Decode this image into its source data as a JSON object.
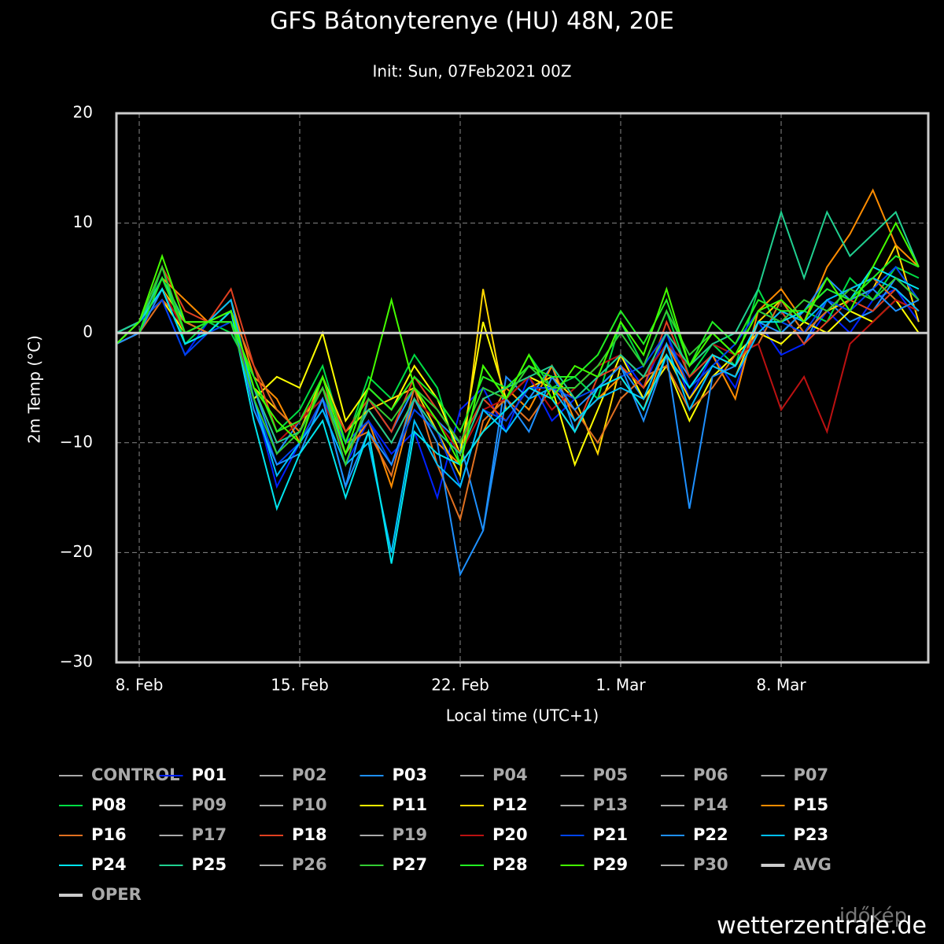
{
  "chart_data": {
    "type": "line",
    "title": "GFS Bátonyterenye (HU) 48N, 20E",
    "subtitle": "Init: Sun, 07Feb2021 00Z",
    "x_label": "Local time (UTC+1)",
    "y_label": "2m Temp (°C)",
    "footer": "wetterzentrale.de",
    "logo_text": "időkép",
    "categories": [
      null,
      "8. Feb",
      null,
      null,
      null,
      null,
      null,
      null,
      "15. Feb",
      null,
      null,
      null,
      null,
      null,
      null,
      "22. Feb",
      null,
      null,
      null,
      null,
      null,
      null,
      "1. Mar",
      null,
      null,
      null,
      null,
      null,
      null,
      "8. Mar",
      null,
      null,
      null,
      null,
      null,
      null
    ],
    "ylim": [
      -30,
      20
    ],
    "yticks": [
      {
        "value": -30,
        "label": "−30"
      },
      {
        "value": -20,
        "label": "−20"
      },
      {
        "value": -10,
        "label": "−10"
      },
      0,
      10,
      20
    ],
    "grid": true,
    "zero_line": true,
    "series": [
      {
        "name": "CONTROL",
        "visible": false
      },
      {
        "name": "P01",
        "color": "#0022ff",
        "values": [
          -1,
          1,
          3,
          -2,
          1,
          2,
          -6,
          -14,
          -10,
          -7,
          -12,
          -8,
          -11,
          -9,
          -15,
          -7,
          -5,
          -9,
          -4,
          -8,
          -6,
          -4,
          -2,
          -5,
          0,
          -6,
          -2,
          -5,
          1,
          -2,
          -1,
          2,
          0,
          3,
          4,
          1
        ]
      },
      {
        "name": "P02",
        "visible": false
      },
      {
        "name": "P03",
        "color": "#1e90ff",
        "values": [
          0,
          1,
          4,
          -1,
          0,
          2,
          -5,
          -11,
          -8,
          -6,
          -14,
          -6,
          -9,
          -5,
          -8,
          -10,
          -18,
          -4,
          -6,
          -3,
          -9,
          -5,
          -3,
          -6,
          -1,
          -4,
          -2,
          -3,
          0,
          2,
          -1,
          3,
          1,
          2,
          5,
          3
        ]
      },
      {
        "name": "P04",
        "visible": false
      },
      {
        "name": "P05",
        "visible": false
      },
      {
        "name": "P06",
        "visible": false
      },
      {
        "name": "P07",
        "visible": false
      },
      {
        "name": "P08",
        "color": "#00dd44",
        "values": [
          -1,
          0,
          6,
          -1,
          1,
          0,
          -4,
          -9,
          -7,
          -3,
          -10,
          -4,
          -6,
          -2,
          -5,
          -12,
          -3,
          -6,
          -2,
          -5,
          -4,
          -6,
          1,
          -3,
          2,
          -4,
          -1,
          -3,
          4,
          0,
          2,
          1,
          5,
          3,
          6,
          5
        ]
      },
      {
        "name": "P09",
        "visible": false
      },
      {
        "name": "P10",
        "visible": false
      },
      {
        "name": "P11",
        "color": "#ffff00",
        "values": [
          0,
          1,
          3,
          0,
          1,
          1,
          -6,
          -4,
          -5,
          0,
          -8,
          -5,
          -7,
          -3,
          -6,
          -11,
          1,
          -6,
          -4,
          -5,
          -12,
          -7,
          -2,
          -6,
          -3,
          -8,
          -4,
          -2,
          0,
          -1,
          1,
          0,
          2,
          1,
          3,
          0
        ]
      },
      {
        "name": "P12",
        "color": "#ffd700",
        "values": [
          -1,
          1,
          4,
          1,
          0,
          2,
          -5,
          -7,
          -9,
          -4,
          -9,
          -7,
          -6,
          -5,
          -9,
          -13,
          4,
          -7,
          -5,
          -4,
          -6,
          -11,
          -3,
          -5,
          -2,
          -6,
          -3,
          -4,
          1,
          3,
          0,
          2,
          3,
          4,
          8,
          1
        ]
      },
      {
        "name": "P13",
        "visible": false
      },
      {
        "name": "P14",
        "visible": false
      },
      {
        "name": "P15",
        "color": "#ff8c00",
        "values": [
          0,
          1,
          5,
          3,
          1,
          3,
          -4,
          -6,
          -10,
          -6,
          -11,
          -8,
          -14,
          -6,
          -10,
          -12,
          -9,
          -5,
          -7,
          -3,
          -8,
          -6,
          -4,
          -7,
          -1,
          -5,
          -2,
          -6,
          2,
          4,
          1,
          6,
          9,
          13,
          8,
          6
        ]
      },
      {
        "name": "P16",
        "color": "#e07020",
        "values": [
          -1,
          0,
          3,
          1,
          0,
          2,
          -3,
          -7,
          -9,
          -5,
          -10,
          -9,
          -13,
          -5,
          -12,
          -17,
          -8,
          -6,
          -8,
          -5,
          -7,
          -10,
          -6,
          -4,
          -3,
          -7,
          -5,
          -2,
          -1,
          3,
          0,
          2,
          4,
          5,
          3,
          2
        ]
      },
      {
        "name": "P17",
        "visible": false
      },
      {
        "name": "P18",
        "color": "#e04020",
        "values": [
          0,
          1,
          6,
          2,
          1,
          4,
          -3,
          -9,
          -8,
          -5,
          -9,
          -6,
          -9,
          -4,
          -7,
          -10,
          -6,
          -8,
          -5,
          -6,
          -9,
          -4,
          -3,
          -5,
          1,
          -4,
          -2,
          -3,
          0,
          2,
          -1,
          1,
          3,
          2,
          4,
          2
        ]
      },
      {
        "name": "P19",
        "visible": false
      },
      {
        "name": "P20",
        "color": "#bb1111",
        "values": [
          -1,
          0,
          4,
          0,
          1,
          1,
          -5,
          -10,
          -8,
          -6,
          -11,
          -7,
          -10,
          -6,
          -8,
          -11,
          -7,
          -6,
          -4,
          -7,
          -5,
          -3,
          -2,
          -4,
          -1,
          -3,
          -1,
          -2,
          -1,
          -7,
          -4,
          -9,
          -1,
          1,
          3,
          2
        ]
      },
      {
        "name": "P21",
        "color": "#0044ee",
        "values": [
          0,
          1,
          3,
          -2,
          0,
          1,
          -6,
          -12,
          -10,
          -6,
          -10,
          -8,
          -12,
          -7,
          -9,
          -14,
          -7,
          -8,
          -5,
          -5,
          -6,
          -5,
          -4,
          -3,
          0,
          -5,
          -3,
          -1,
          2,
          1,
          0,
          3,
          2,
          4,
          6,
          3
        ]
      },
      {
        "name": "P22",
        "color": "#1e90ff",
        "values": [
          -1,
          0,
          4,
          -1,
          0,
          2,
          -7,
          -12,
          -11,
          -6,
          -14,
          -9,
          -12,
          -6,
          -10,
          -22,
          -18,
          -6,
          -9,
          -4,
          -7,
          -5,
          -3,
          -8,
          -2,
          -16,
          -4,
          -3,
          1,
          0,
          2,
          5,
          3,
          4,
          2,
          3
        ]
      },
      {
        "name": "P23",
        "color": "#00bfff",
        "values": [
          0,
          1,
          5,
          0,
          1,
          3,
          -6,
          -13,
          -10,
          -7,
          -12,
          -10,
          -20,
          -8,
          -12,
          -14,
          -7,
          -9,
          -6,
          -5,
          -8,
          -6,
          -5,
          -6,
          -1,
          -7,
          -3,
          -4,
          0,
          2,
          1,
          3,
          4,
          5,
          4,
          2
        ]
      },
      {
        "name": "P24",
        "color": "#00e5ee",
        "values": [
          -1,
          1,
          4,
          -1,
          0,
          2,
          -8,
          -16,
          -11,
          -8,
          -15,
          -9,
          -21,
          -9,
          -11,
          -12,
          -9,
          -7,
          -5,
          -6,
          -9,
          -5,
          -4,
          -7,
          -2,
          -5,
          -2,
          -3,
          1,
          1,
          2,
          4,
          3,
          6,
          5,
          4
        ]
      },
      {
        "name": "P25",
        "color": "#20d090",
        "values": [
          0,
          1,
          5,
          1,
          1,
          2,
          -5,
          -10,
          -9,
          -5,
          -11,
          -7,
          -10,
          -6,
          -9,
          -11,
          -6,
          -5,
          -4,
          -3,
          -6,
          -4,
          -2,
          -4,
          0,
          -3,
          -1,
          0,
          4,
          11,
          5,
          11,
          7,
          9,
          11,
          6
        ]
      },
      {
        "name": "P26",
        "visible": false
      },
      {
        "name": "P27",
        "color": "#33cc33",
        "values": [
          -1,
          1,
          6,
          0,
          1,
          1,
          -6,
          -11,
          -9,
          -5,
          -12,
          -6,
          -8,
          -5,
          -7,
          -10,
          -5,
          -6,
          -3,
          -5,
          -5,
          -3,
          0,
          -3,
          2,
          -2,
          0,
          -2,
          2,
          1,
          3,
          2,
          4,
          3,
          5,
          3
        ]
      },
      {
        "name": "P28",
        "color": "#22ee22",
        "values": [
          0,
          0,
          5,
          0,
          1,
          1,
          -4,
          -9,
          -8,
          -4,
          -10,
          -5,
          -7,
          -4,
          -6,
          -9,
          -4,
          -5,
          -3,
          -4,
          -4,
          -2,
          2,
          -1,
          3,
          -3,
          1,
          -1,
          3,
          2,
          2,
          4,
          3,
          5,
          7,
          6
        ]
      },
      {
        "name": "P29",
        "color": "#44ff00",
        "values": [
          -1,
          1,
          7,
          1,
          1,
          2,
          -5,
          -8,
          -10,
          -4,
          -11,
          -5,
          3,
          -5,
          -8,
          -12,
          -3,
          -6,
          -2,
          -6,
          -3,
          -4,
          1,
          -2,
          4,
          -3,
          0,
          -2,
          2,
          3,
          1,
          5,
          2,
          6,
          10,
          6
        ]
      },
      {
        "name": "P30",
        "visible": false
      },
      {
        "name": "AVG",
        "visible": false,
        "line_width": 4
      },
      {
        "name": "OPER",
        "visible": false,
        "line_width": 4
      }
    ]
  }
}
